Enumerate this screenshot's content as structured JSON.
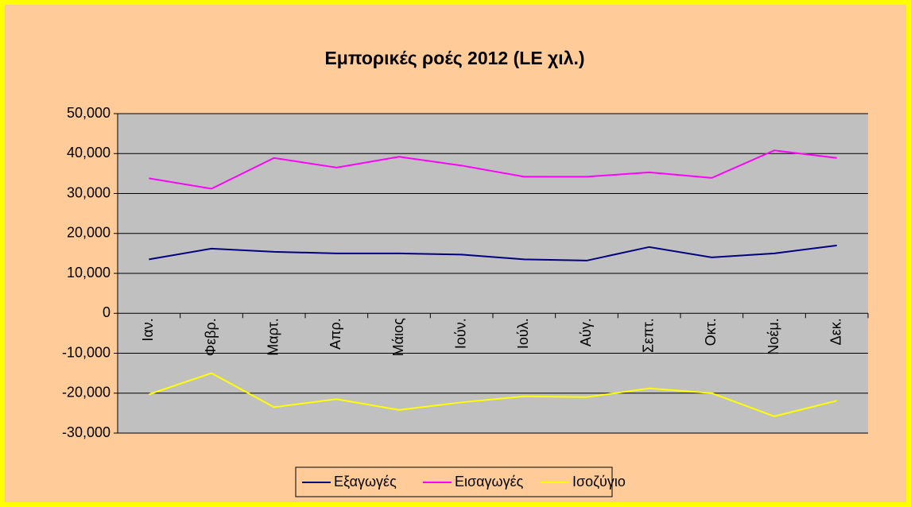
{
  "chart_data": {
    "type": "line",
    "title": "Εμπορικές ροές 2012 (LE χιλ.)",
    "categories": [
      "Ιαν.",
      "Φεβρ.",
      "Μαρτ.",
      "Απρ.",
      "Μάιος",
      "Ιούν.",
      "Ιούλ.",
      "Αύγ.",
      "Σεπτ.",
      "Οκτ.",
      "Νοέμ.",
      "Δεκ."
    ],
    "series": [
      {
        "name": "Εξαγωγές",
        "color": "#000080",
        "values": [
          13500,
          16200,
          15400,
          15000,
          15000,
          14700,
          13500,
          13200,
          16600,
          14000,
          15000,
          17000
        ]
      },
      {
        "name": "Εισαγωγές",
        "color": "#ff00ff",
        "values": [
          33800,
          31200,
          38900,
          36500,
          39200,
          37000,
          34200,
          34200,
          35300,
          33900,
          40800,
          38900
        ]
      },
      {
        "name": "Ισοζύγιο",
        "color": "#ffff00",
        "values": [
          -20300,
          -15000,
          -23500,
          -21500,
          -24200,
          -22300,
          -20800,
          -21000,
          -18800,
          -20000,
          -25800,
          -21900
        ]
      }
    ],
    "ylim": [
      -30000,
      50000
    ],
    "yticks": [
      {
        "value": -30000,
        "label": "-30,000"
      },
      {
        "value": -20000,
        "label": "-20,000"
      },
      {
        "value": -10000,
        "label": "-10,000"
      },
      0,
      {
        "value": 10000,
        "label": "10,000"
      },
      {
        "value": 20000,
        "label": "20,000"
      },
      {
        "value": 30000,
        "label": "30,000"
      },
      {
        "value": 40000,
        "label": "40,000"
      },
      {
        "value": 50000,
        "label": "50,000"
      }
    ],
    "grid": true,
    "legend": "bottom"
  }
}
